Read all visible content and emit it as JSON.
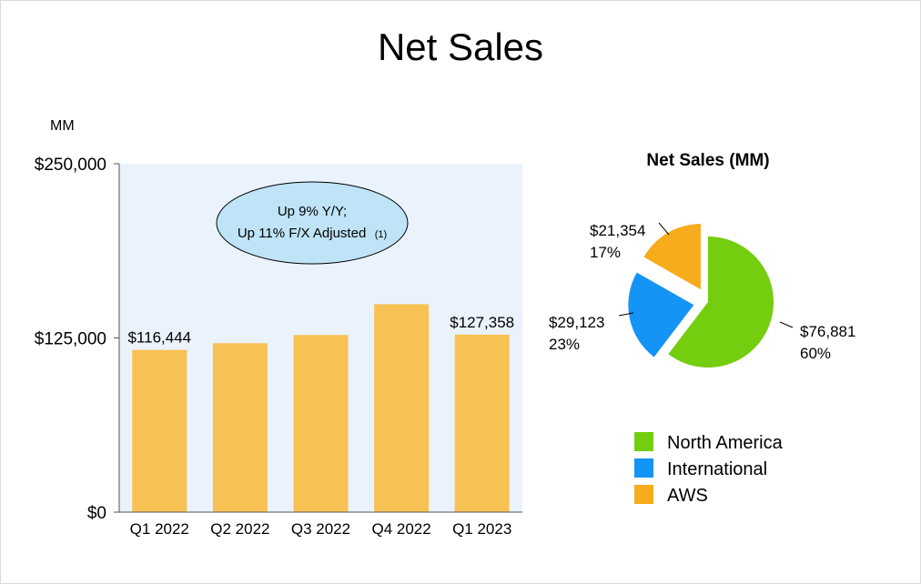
{
  "page_title": "Net Sales",
  "colors": {
    "plot_bg": "#eaf2fc",
    "bar": "#f8c153",
    "north_america": "#74cd0e",
    "international": "#1494f5",
    "aws": "#f7ac1c",
    "callout_fill": "#bfe3f7"
  },
  "chart_data": [
    {
      "type": "bar",
      "unit_label": "MM",
      "categories": [
        "Q1 2022",
        "Q2 2022",
        "Q3 2022",
        "Q4 2022",
        "Q1 2023"
      ],
      "values": [
        116444,
        121234,
        127101,
        149204,
        127358
      ],
      "data_labels": [
        "$116,444",
        "",
        "",
        "",
        "$127,358"
      ],
      "ylim": [
        0,
        250000
      ],
      "ytick_labels": [
        "$0",
        "$125,000",
        "$250,000"
      ],
      "annotation": {
        "line1": "Up 9% Y/Y;",
        "line2": "Up 11% F/X Adjusted",
        "footnote": "(1)"
      },
      "grid": false
    },
    {
      "type": "pie",
      "title": "Net Sales (MM)",
      "slices": [
        {
          "name": "North America",
          "value": 76881,
          "value_label": "$76,881",
          "percent_label": "60%",
          "color": "#74cd0e"
        },
        {
          "name": "International",
          "value": 29123,
          "value_label": "$29,123",
          "percent_label": "23%",
          "color": "#1494f5"
        },
        {
          "name": "AWS",
          "value": 21354,
          "value_label": "$21,354",
          "percent_label": "17%",
          "color": "#f7ac1c"
        }
      ],
      "legend": [
        "North America",
        "International",
        "AWS"
      ],
      "legend_placement": "bottom"
    }
  ]
}
